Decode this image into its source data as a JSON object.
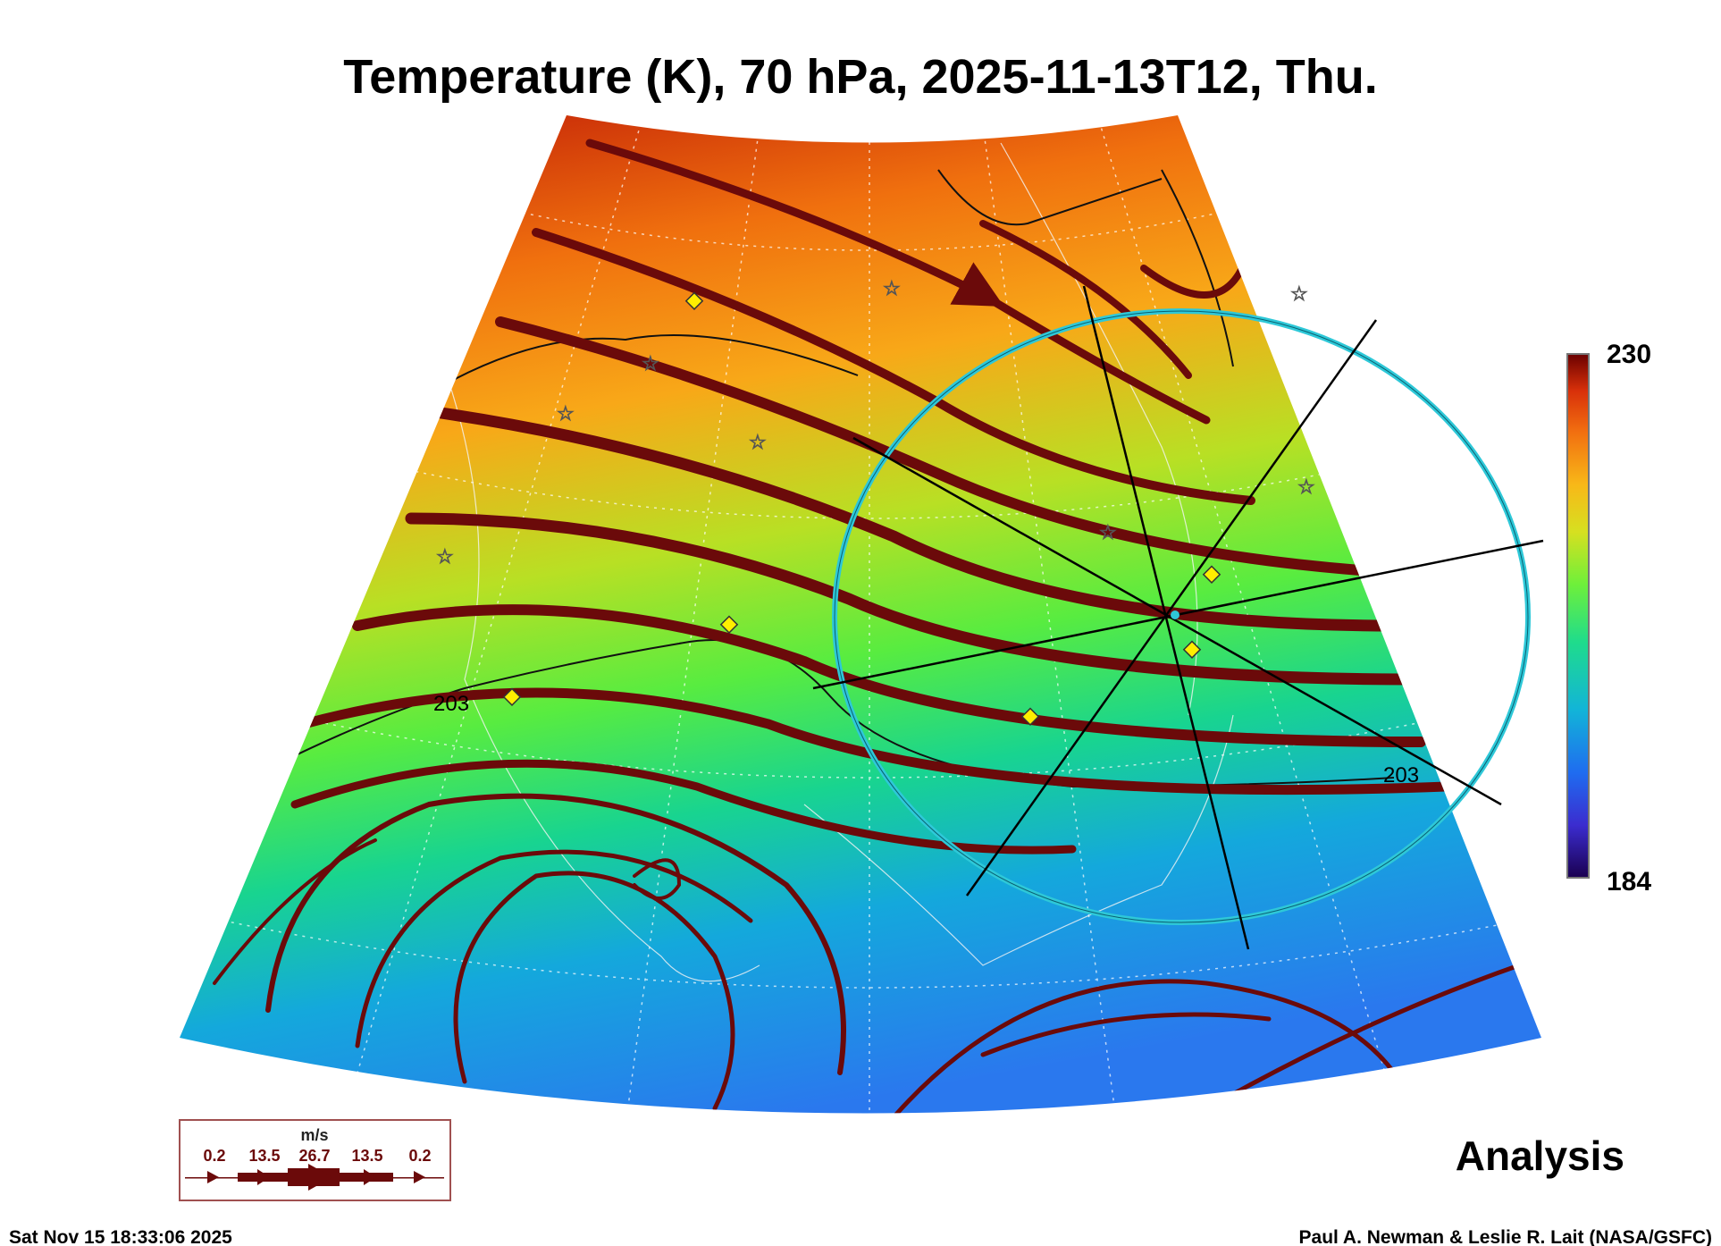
{
  "title": "Temperature (K), 70 hPa, 2025-11-13T12, Thu.",
  "colorbar": {
    "max_label": "230",
    "min_label": "184",
    "colors": [
      "#1a0050",
      "#3b2ccf",
      "#1f6cf0",
      "#12b4d8",
      "#1fdc8c",
      "#6ef03a",
      "#d6e020",
      "#f8b818",
      "#f27010",
      "#d8300a",
      "#6a0000"
    ]
  },
  "contour_labels": [
    "203",
    "203"
  ],
  "legend": {
    "unit": "m/s",
    "speeds": [
      "0.2",
      "13.5",
      "26.7",
      "13.5",
      "0.2"
    ]
  },
  "product_label": "Analysis",
  "timestamp": "Sat Nov 15 18:33:06 2025",
  "credit": "Paul A. Newman & Leslie R. Lait (NASA/GSFC)",
  "colors": {
    "streamline": "#6b0a0a",
    "ring": "#2ec8d8",
    "marker_diamond": "#ffee00"
  }
}
